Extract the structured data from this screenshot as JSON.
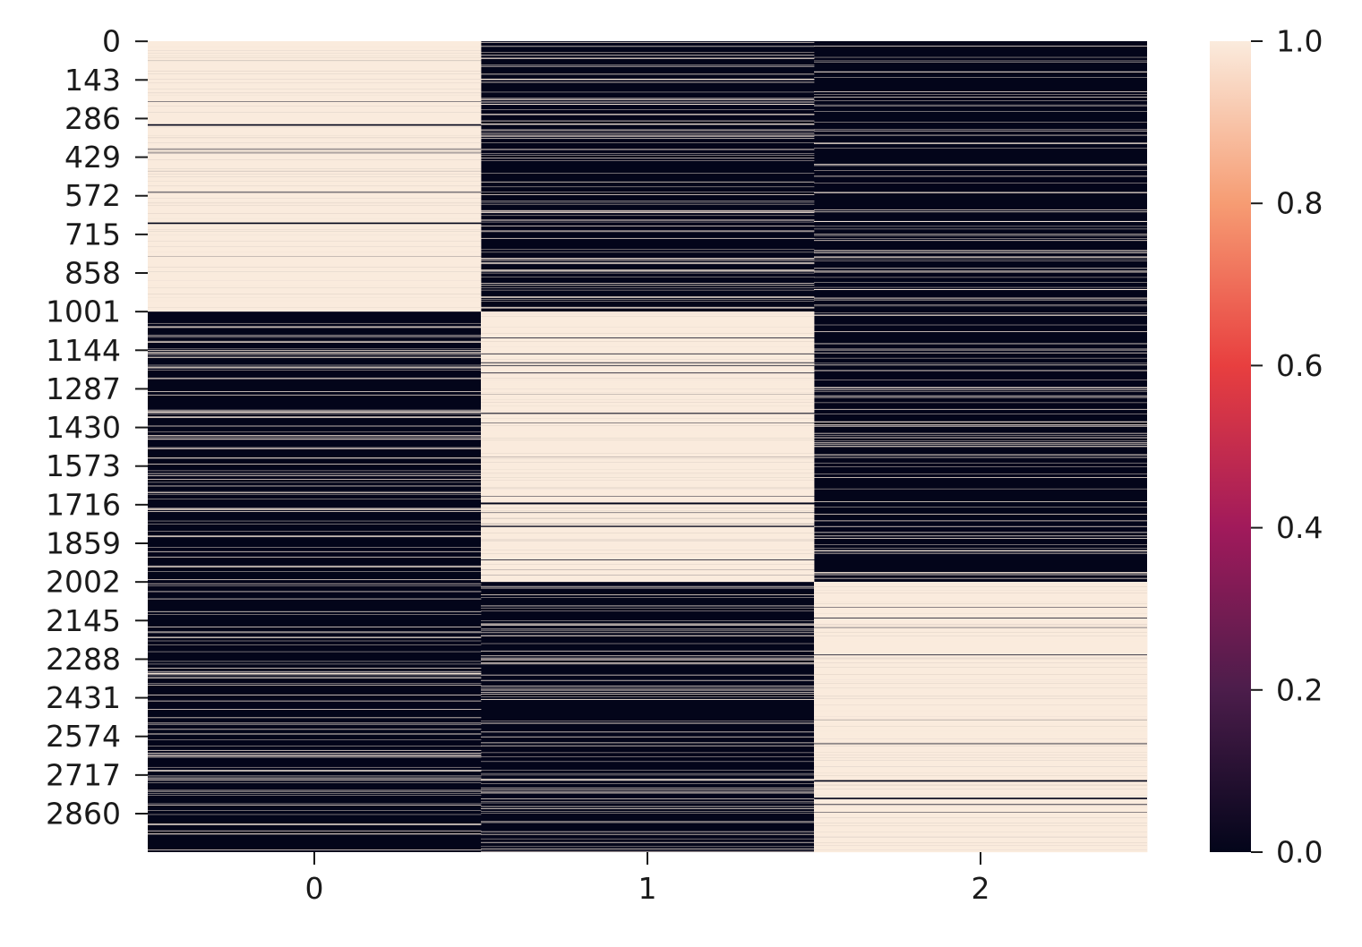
{
  "chart_data": {
    "type": "heatmap",
    "title": "",
    "xlabel": "",
    "ylabel": "",
    "x_categories": [
      "0",
      "1",
      "2"
    ],
    "y_tick_labels": [
      "0",
      "143",
      "286",
      "429",
      "572",
      "715",
      "858",
      "1001",
      "1144",
      "1287",
      "1430",
      "1573",
      "1716",
      "1859",
      "2002",
      "2145",
      "2288",
      "2431",
      "2574",
      "2717",
      "2860"
    ],
    "n_rows": 3003,
    "value_range": [
      0.0,
      1.0
    ],
    "values_are_binary": true,
    "colorbar": {
      "ticks": [
        "0.0",
        "0.2",
        "0.4",
        "0.6",
        "0.8",
        "1.0"
      ],
      "colormap": "rocket",
      "colors": [
        "#03051a",
        "#4c1d4b",
        "#a11a5b",
        "#e83f3f",
        "#f69c73",
        "#faebdd"
      ]
    },
    "blocks": [
      {
        "rows": [
          0,
          1000
        ],
        "dominant_column": "0"
      },
      {
        "rows": [
          1001,
          2001
        ],
        "dominant_column": "1"
      },
      {
        "rows": [
          2002,
          3002
        ],
        "dominant_column": "2"
      }
    ]
  }
}
